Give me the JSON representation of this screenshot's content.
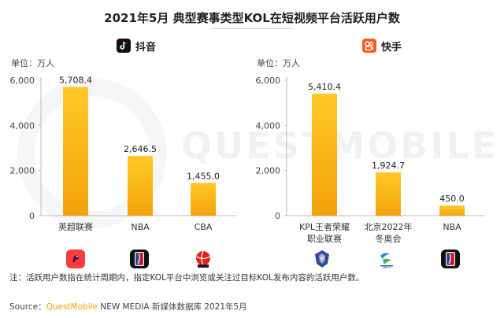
{
  "title": "2021年5月 典型赛事类型KOL在短视频平台活跃用户数",
  "colors": {
    "bar_top": "#ffc928",
    "bar_bottom": "#f3a20a",
    "axis": "#bbbbbb",
    "douyin": "#111111",
    "kuaishou": "#ff5a1f"
  },
  "panels": [
    {
      "platform": "抖音",
      "unit": "单位：万人",
      "logo_icon": "douyin-logo-icon"
    },
    {
      "platform": "快手",
      "unit": "单位：万人",
      "logo_icon": "kuaishou-logo-icon"
    }
  ],
  "icons": {
    "left": [
      "premier-league-icon",
      "nba-logo-icon",
      "cba-logo-icon"
    ],
    "right": [
      "kpl-logo-icon",
      "beijing-2022-emblem-icon",
      "nba-logo-icon"
    ]
  },
  "chart_data": [
    {
      "type": "bar",
      "title": "抖音",
      "ylabel": "单位：万人",
      "categories": [
        "英超联赛",
        "NBA",
        "CBA"
      ],
      "values": [
        5708.4,
        2646.5,
        1455.0
      ],
      "value_labels": [
        "5,708.4",
        "2,646.5",
        "1,455.0"
      ],
      "ylim": [
        0,
        6000
      ],
      "yticks": [
        0,
        2000,
        4000,
        6000
      ],
      "ytick_labels": [
        "0",
        "2,000",
        "4,000",
        "6,000"
      ]
    },
    {
      "type": "bar",
      "title": "快手",
      "ylabel": "单位：万人",
      "categories": [
        "KPL王者荣耀\n职业联赛",
        "北京2022年\n冬奥会",
        "NBA"
      ],
      "values": [
        5410.4,
        1924.7,
        450.0
      ],
      "value_labels": [
        "5,410.4",
        "1,924.7",
        "450.0"
      ],
      "ylim": [
        0,
        6000
      ],
      "yticks": [
        0,
        2000,
        4000,
        6000
      ],
      "ytick_labels": [
        "0",
        "2,000",
        "4,000",
        "6,000"
      ]
    }
  ],
  "note": "注：活跃用户数指在统计周期内，指定KOL平台中浏览或关注过目标KOL发布内容的活跃用户数。",
  "source": {
    "prefix": "Source：",
    "brand": "QuestMobile",
    "rest": " NEW MEDIA 新媒体数据库 2021年5月"
  },
  "watermark": "QUESTMOBILE"
}
